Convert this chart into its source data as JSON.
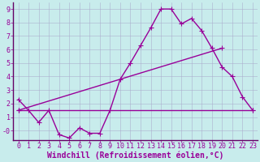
{
  "xlabel": "Windchill (Refroidissement éolien,°C)",
  "bg_color": "#c8ecec",
  "line_color": "#990099",
  "axis_color": "#660066",
  "grid_color": "#aaaacc",
  "xlim": [
    -0.5,
    23.5
  ],
  "ylim": [
    -0.7,
    9.5
  ],
  "xticks": [
    0,
    1,
    2,
    3,
    4,
    5,
    6,
    7,
    8,
    9,
    10,
    11,
    12,
    13,
    14,
    15,
    16,
    17,
    18,
    19,
    20,
    21,
    22,
    23
  ],
  "yticks": [
    0,
    1,
    2,
    3,
    4,
    5,
    6,
    7,
    8,
    9
  ],
  "ytick_labels": [
    "-0",
    "1",
    "2",
    "3",
    "4",
    "5",
    "6",
    "7",
    "8",
    "9"
  ],
  "curve1_x": [
    0,
    1,
    2,
    3,
    4,
    5,
    6,
    7,
    8,
    9,
    10,
    11,
    12,
    13,
    14,
    15,
    16,
    17,
    18,
    19,
    20,
    21,
    22,
    23
  ],
  "curve1_y": [
    2.3,
    1.5,
    0.6,
    1.5,
    -0.3,
    -0.55,
    0.2,
    -0.2,
    -0.2,
    1.5,
    3.8,
    5.0,
    6.3,
    7.6,
    9.0,
    9.0,
    7.9,
    8.3,
    7.4,
    6.1,
    4.7,
    4.0,
    2.5,
    1.5
  ],
  "curve2_x": [
    0,
    20
  ],
  "curve2_y": [
    1.5,
    6.1
  ],
  "curve3_x": [
    0,
    23
  ],
  "curve3_y": [
    1.5,
    1.5
  ],
  "marker": "+",
  "markersize": 4,
  "linewidth": 1.0,
  "xlabel_fontsize": 7,
  "tick_fontsize": 6
}
